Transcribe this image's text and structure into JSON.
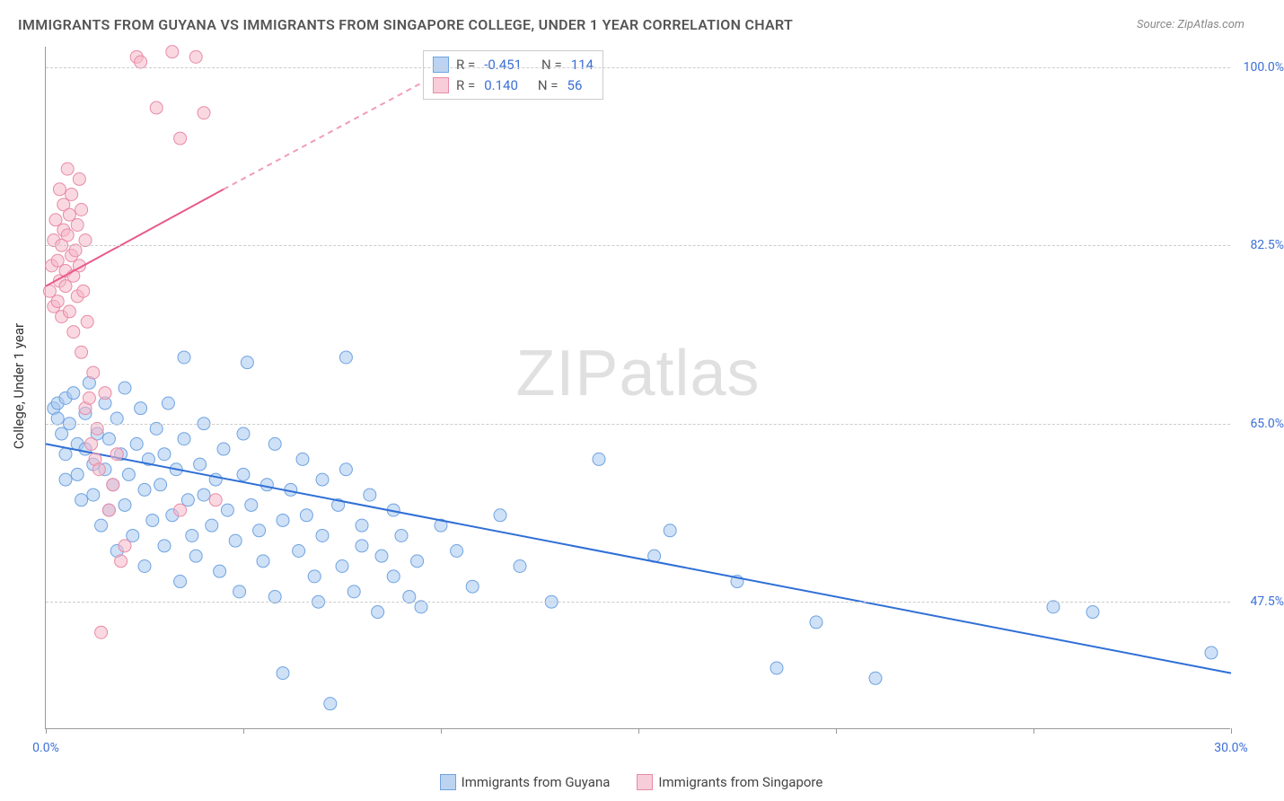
{
  "title": "IMMIGRANTS FROM GUYANA VS IMMIGRANTS FROM SINGAPORE COLLEGE, UNDER 1 YEAR CORRELATION CHART",
  "source": "Source: ZipAtlas.com",
  "y_axis_label": "College, Under 1 year",
  "watermark_a": "ZIP",
  "watermark_b": "atlas",
  "chart": {
    "type": "scatter",
    "background_color": "#ffffff",
    "grid_color": "#cccccc",
    "axis_color": "#999999",
    "tick_label_color": "#3b6fd6",
    "xlim": [
      0.0,
      30.0
    ],
    "ylim": [
      35.0,
      102.0
    ],
    "x_ticks": [
      0.0,
      5.0,
      10.0,
      15.0,
      20.0,
      25.0,
      30.0
    ],
    "x_tick_labels_visible": {
      "0.0": "0.0%",
      "30.0": "30.0%"
    },
    "y_ticks": [
      47.5,
      65.0,
      82.5,
      100.0
    ],
    "y_tick_labels": [
      "47.5%",
      "65.0%",
      "82.5%",
      "100.0%"
    ],
    "series": [
      {
        "name": "Immigrants from Guyana",
        "color_fill": "#a8c8f0",
        "color_stroke": "#6fa3e0",
        "legend_swatch_fill": "#bcd4f2",
        "legend_swatch_stroke": "#6fa3e0",
        "R": "-0.451",
        "N": "114",
        "trend": {
          "x1": 0.0,
          "y1": 63.0,
          "x2": 30.0,
          "y2": 40.5,
          "color": "#2f6fd6",
          "width": 2,
          "dash": "none"
        },
        "marker_radius": 7,
        "marker_opacity": 0.55,
        "points": [
          [
            0.2,
            66.5
          ],
          [
            0.3,
            65.5
          ],
          [
            0.3,
            67.0
          ],
          [
            0.4,
            64.0
          ],
          [
            0.5,
            67.5
          ],
          [
            0.5,
            62.0
          ],
          [
            0.5,
            59.5
          ],
          [
            0.6,
            65.0
          ],
          [
            0.7,
            68.0
          ],
          [
            0.8,
            60.0
          ],
          [
            0.8,
            63.0
          ],
          [
            0.9,
            57.5
          ],
          [
            1.0,
            66.0
          ],
          [
            1.0,
            62.5
          ],
          [
            1.1,
            69.0
          ],
          [
            1.2,
            58.0
          ],
          [
            1.2,
            61.0
          ],
          [
            1.3,
            64.0
          ],
          [
            1.4,
            55.0
          ],
          [
            1.5,
            67.0
          ],
          [
            1.5,
            60.5
          ],
          [
            1.6,
            63.5
          ],
          [
            1.6,
            56.5
          ],
          [
            1.7,
            59.0
          ],
          [
            1.8,
            65.5
          ],
          [
            1.8,
            52.5
          ],
          [
            1.9,
            62.0
          ],
          [
            2.0,
            68.5
          ],
          [
            2.0,
            57.0
          ],
          [
            2.1,
            60.0
          ],
          [
            2.2,
            54.0
          ],
          [
            2.3,
            63.0
          ],
          [
            2.4,
            66.5
          ],
          [
            2.5,
            58.5
          ],
          [
            2.5,
            51.0
          ],
          [
            2.6,
            61.5
          ],
          [
            2.7,
            55.5
          ],
          [
            2.8,
            64.5
          ],
          [
            2.9,
            59.0
          ],
          [
            3.0,
            62.0
          ],
          [
            3.0,
            53.0
          ],
          [
            3.1,
            67.0
          ],
          [
            3.2,
            56.0
          ],
          [
            3.3,
            60.5
          ],
          [
            3.4,
            49.5
          ],
          [
            3.5,
            63.5
          ],
          [
            3.5,
            71.5
          ],
          [
            3.6,
            57.5
          ],
          [
            3.7,
            54.0
          ],
          [
            3.8,
            52.0
          ],
          [
            3.9,
            61.0
          ],
          [
            4.0,
            58.0
          ],
          [
            4.0,
            65.0
          ],
          [
            4.2,
            55.0
          ],
          [
            4.3,
            59.5
          ],
          [
            4.4,
            50.5
          ],
          [
            4.5,
            62.5
          ],
          [
            4.6,
            56.5
          ],
          [
            4.8,
            53.5
          ],
          [
            4.9,
            48.5
          ],
          [
            5.0,
            60.0
          ],
          [
            5.0,
            64.0
          ],
          [
            5.1,
            71.0
          ],
          [
            5.2,
            57.0
          ],
          [
            5.4,
            54.5
          ],
          [
            5.5,
            51.5
          ],
          [
            5.6,
            59.0
          ],
          [
            5.8,
            48.0
          ],
          [
            5.8,
            63.0
          ],
          [
            6.0,
            55.5
          ],
          [
            6.0,
            40.5
          ],
          [
            6.2,
            58.5
          ],
          [
            6.4,
            52.5
          ],
          [
            6.5,
            61.5
          ],
          [
            6.6,
            56.0
          ],
          [
            6.8,
            50.0
          ],
          [
            6.9,
            47.5
          ],
          [
            7.0,
            59.5
          ],
          [
            7.0,
            54.0
          ],
          [
            7.2,
            37.5
          ],
          [
            7.4,
            57.0
          ],
          [
            7.5,
            51.0
          ],
          [
            7.6,
            60.5
          ],
          [
            7.6,
            71.5
          ],
          [
            7.8,
            48.5
          ],
          [
            8.0,
            55.0
          ],
          [
            8.0,
            53.0
          ],
          [
            8.2,
            58.0
          ],
          [
            8.4,
            46.5
          ],
          [
            8.5,
            52.0
          ],
          [
            8.8,
            50.0
          ],
          [
            8.8,
            56.5
          ],
          [
            9.0,
            54.0
          ],
          [
            9.2,
            48.0
          ],
          [
            9.4,
            51.5
          ],
          [
            9.5,
            47.0
          ],
          [
            10.0,
            55.0
          ],
          [
            10.4,
            52.5
          ],
          [
            10.8,
            49.0
          ],
          [
            11.5,
            56.0
          ],
          [
            12.0,
            51.0
          ],
          [
            12.8,
            47.5
          ],
          [
            14.0,
            61.5
          ],
          [
            15.4,
            52.0
          ],
          [
            15.8,
            54.5
          ],
          [
            17.5,
            49.5
          ],
          [
            18.5,
            41.0
          ],
          [
            19.5,
            45.5
          ],
          [
            21.0,
            40.0
          ],
          [
            25.5,
            47.0
          ],
          [
            26.5,
            46.5
          ],
          [
            29.5,
            42.5
          ]
        ]
      },
      {
        "name": "Immigrants from Singapore",
        "color_fill": "#f5b8c9",
        "color_stroke": "#e88ba6",
        "legend_swatch_fill": "#f7cdd9",
        "legend_swatch_stroke": "#e88ba6",
        "R": "0.140",
        "N": "56",
        "trend": {
          "x1": 0.0,
          "y1": 78.5,
          "x2": 4.5,
          "y2": 88.0,
          "color": "#e85a8a",
          "width": 2,
          "dash": "none",
          "extend": {
            "x2": 10.5,
            "y2": 100.5,
            "dash": "6,5"
          }
        },
        "marker_radius": 7,
        "marker_opacity": 0.55,
        "points": [
          [
            0.1,
            78.0
          ],
          [
            0.15,
            80.5
          ],
          [
            0.2,
            76.5
          ],
          [
            0.2,
            83.0
          ],
          [
            0.25,
            85.0
          ],
          [
            0.3,
            77.0
          ],
          [
            0.3,
            81.0
          ],
          [
            0.35,
            79.0
          ],
          [
            0.35,
            88.0
          ],
          [
            0.4,
            82.5
          ],
          [
            0.4,
            75.5
          ],
          [
            0.45,
            84.0
          ],
          [
            0.45,
            86.5
          ],
          [
            0.5,
            78.5
          ],
          [
            0.5,
            80.0
          ],
          [
            0.55,
            83.5
          ],
          [
            0.55,
            90.0
          ],
          [
            0.6,
            76.0
          ],
          [
            0.6,
            85.5
          ],
          [
            0.65,
            81.5
          ],
          [
            0.65,
            87.5
          ],
          [
            0.7,
            79.5
          ],
          [
            0.7,
            74.0
          ],
          [
            0.75,
            82.0
          ],
          [
            0.8,
            84.5
          ],
          [
            0.8,
            77.5
          ],
          [
            0.85,
            89.0
          ],
          [
            0.85,
            80.5
          ],
          [
            0.9,
            72.0
          ],
          [
            0.9,
            86.0
          ],
          [
            0.95,
            78.0
          ],
          [
            1.0,
            83.0
          ],
          [
            1.0,
            66.5
          ],
          [
            1.05,
            75.0
          ],
          [
            1.1,
            67.5
          ],
          [
            1.15,
            63.0
          ],
          [
            1.2,
            70.0
          ],
          [
            1.25,
            61.5
          ],
          [
            1.3,
            64.5
          ],
          [
            1.35,
            60.5
          ],
          [
            1.4,
            44.5
          ],
          [
            1.5,
            68.0
          ],
          [
            1.6,
            56.5
          ],
          [
            1.7,
            59.0
          ],
          [
            1.8,
            62.0
          ],
          [
            1.9,
            51.5
          ],
          [
            2.0,
            53.0
          ],
          [
            2.3,
            101.0
          ],
          [
            2.4,
            100.5
          ],
          [
            2.8,
            96.0
          ],
          [
            3.2,
            101.5
          ],
          [
            3.4,
            93.0
          ],
          [
            3.4,
            56.5
          ],
          [
            3.8,
            101.0
          ],
          [
            4.0,
            95.5
          ],
          [
            4.3,
            57.5
          ]
        ]
      }
    ]
  },
  "legend_bottom": [
    {
      "label": "Immigrants from Guyana"
    },
    {
      "label": "Immigrants from Singapore"
    }
  ]
}
